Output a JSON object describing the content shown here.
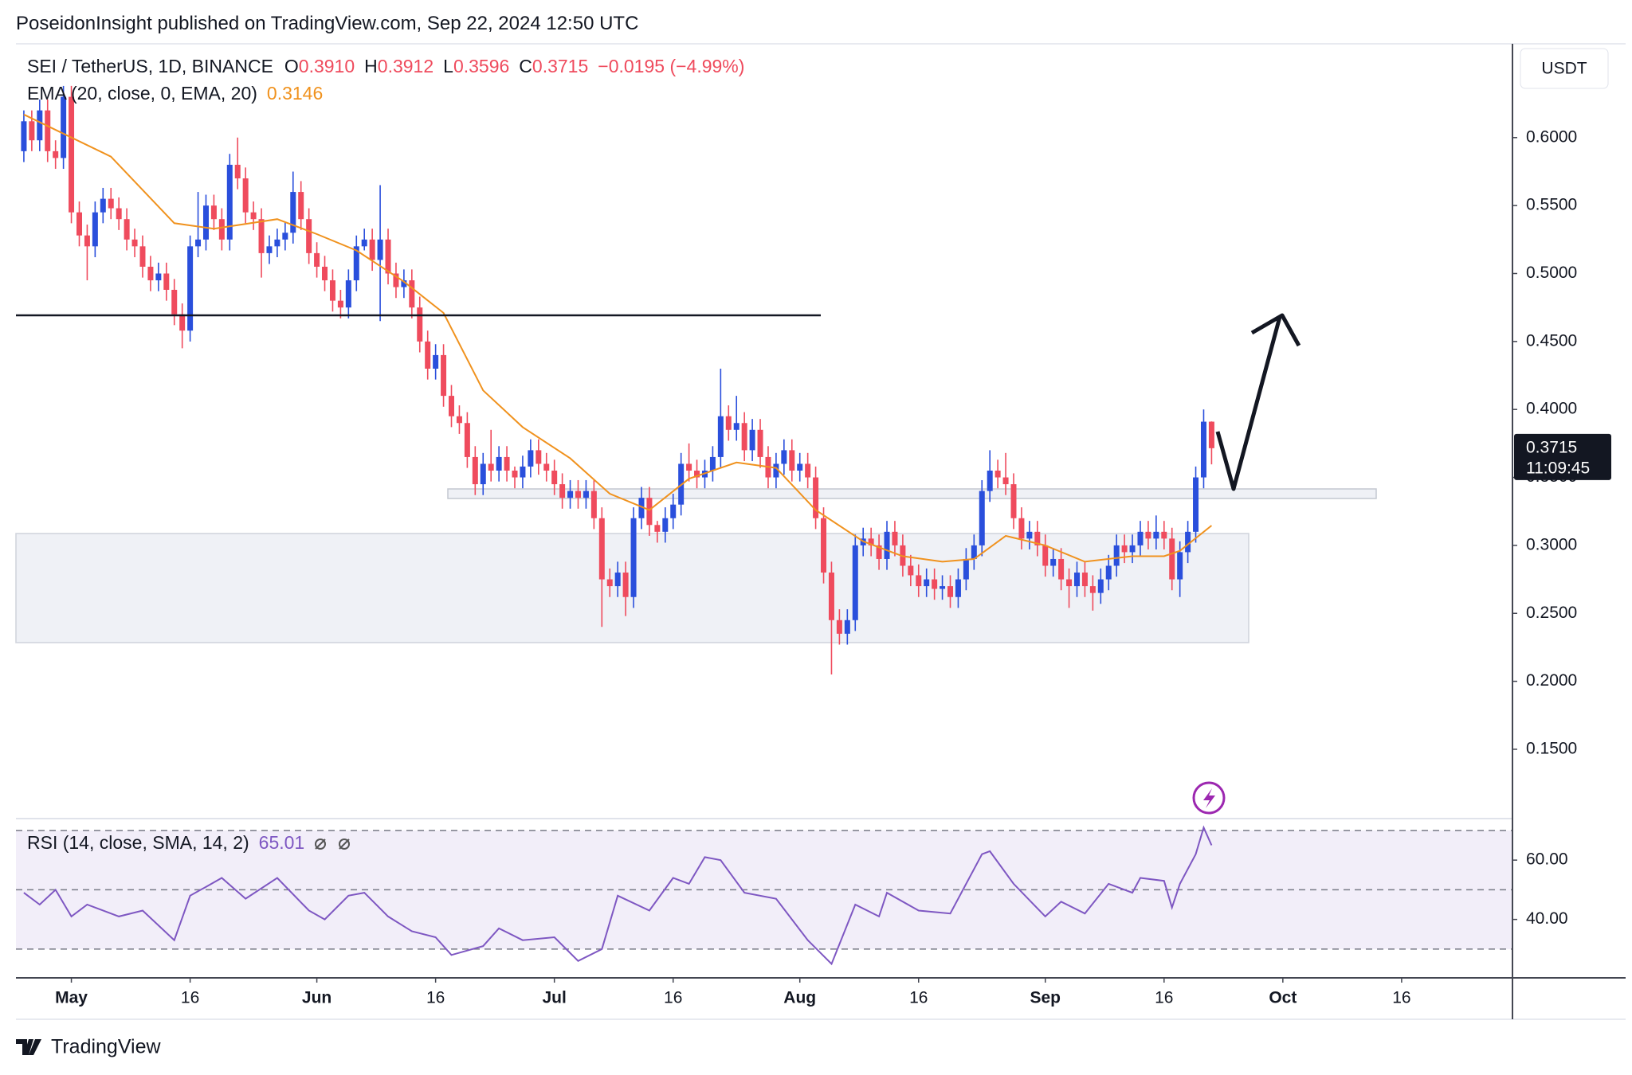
{
  "chart_data": {
    "type": "candlestick",
    "header": "PoseidonInsight published on TradingView.com, Sep 22, 2024 12:50 UTC",
    "symbol": "SEI / TetherUS, 1D, BINANCE",
    "ohlc_legend": [
      {
        "key": "O",
        "label": "0.3910"
      },
      {
        "key": "H",
        "label": "0.3912"
      },
      {
        "key": "L",
        "label": "0.3596"
      },
      {
        "key": "C",
        "label": "0.3715"
      }
    ],
    "change": "−0.0195 (−4.99%)",
    "currency": "USDT",
    "countdown": "11:09:45",
    "branding": "TradingView",
    "up_color": "#2a4fdc",
    "down_color": "#ef4b5d",
    "grid": false,
    "x": [
      "2024-04-25",
      "2024-04-26",
      "2024-04-27",
      "2024-04-28",
      "2024-04-29",
      "2024-04-30",
      "2024-05-01",
      "2024-05-02",
      "2024-05-03",
      "2024-05-04",
      "2024-05-05",
      "2024-05-06",
      "2024-05-07",
      "2024-05-08",
      "2024-05-09",
      "2024-05-10",
      "2024-05-11",
      "2024-05-12",
      "2024-05-13",
      "2024-05-14",
      "2024-05-15",
      "2024-05-16",
      "2024-05-17",
      "2024-05-18",
      "2024-05-19",
      "2024-05-20",
      "2024-05-21",
      "2024-05-22",
      "2024-05-23",
      "2024-05-24",
      "2024-05-25",
      "2024-05-26",
      "2024-05-27",
      "2024-05-28",
      "2024-05-29",
      "2024-05-30",
      "2024-05-31",
      "2024-06-01",
      "2024-06-02",
      "2024-06-03",
      "2024-06-04",
      "2024-06-05",
      "2024-06-06",
      "2024-06-07",
      "2024-06-08",
      "2024-06-09",
      "2024-06-10",
      "2024-06-11",
      "2024-06-12",
      "2024-06-13",
      "2024-06-14",
      "2024-06-15",
      "2024-06-16",
      "2024-06-17",
      "2024-06-18",
      "2024-06-19",
      "2024-06-20",
      "2024-06-21",
      "2024-06-22",
      "2024-06-23",
      "2024-06-24",
      "2024-06-25",
      "2024-06-26",
      "2024-06-27",
      "2024-06-28",
      "2024-06-29",
      "2024-06-30",
      "2024-07-01",
      "2024-07-02",
      "2024-07-03",
      "2024-07-04",
      "2024-07-05",
      "2024-07-06",
      "2024-07-07",
      "2024-07-08",
      "2024-07-09",
      "2024-07-10",
      "2024-07-11",
      "2024-07-12",
      "2024-07-13",
      "2024-07-14",
      "2024-07-15",
      "2024-07-16",
      "2024-07-17",
      "2024-07-18",
      "2024-07-19",
      "2024-07-20",
      "2024-07-21",
      "2024-07-22",
      "2024-07-23",
      "2024-07-24",
      "2024-07-25",
      "2024-07-26",
      "2024-07-27",
      "2024-07-28",
      "2024-07-29",
      "2024-07-30",
      "2024-07-31",
      "2024-08-01",
      "2024-08-02",
      "2024-08-03",
      "2024-08-04",
      "2024-08-05",
      "2024-08-06",
      "2024-08-07",
      "2024-08-08",
      "2024-08-09",
      "2024-08-10",
      "2024-08-11",
      "2024-08-12",
      "2024-08-13",
      "2024-08-14",
      "2024-08-15",
      "2024-08-16",
      "2024-08-17",
      "2024-08-18",
      "2024-08-19",
      "2024-08-20",
      "2024-08-21",
      "2024-08-22",
      "2024-08-23",
      "2024-08-24",
      "2024-08-25",
      "2024-08-26",
      "2024-08-27",
      "2024-08-28",
      "2024-08-29",
      "2024-08-30",
      "2024-08-31",
      "2024-09-01",
      "2024-09-02",
      "2024-09-03",
      "2024-09-04",
      "2024-09-05",
      "2024-09-06",
      "2024-09-07",
      "2024-09-08",
      "2024-09-09",
      "2024-09-10",
      "2024-09-11",
      "2024-09-12",
      "2024-09-13",
      "2024-09-14",
      "2024-09-15",
      "2024-09-16",
      "2024-09-17",
      "2024-09-18",
      "2024-09-19",
      "2024-09-20",
      "2024-09-21",
      "2024-09-22"
    ],
    "open": [
      0.59,
      0.612,
      0.598,
      0.62,
      0.59,
      0.585,
      0.63,
      0.545,
      0.528,
      0.52,
      0.545,
      0.555,
      0.548,
      0.54,
      0.525,
      0.52,
      0.505,
      0.495,
      0.5,
      0.488,
      0.47,
      0.458,
      0.52,
      0.525,
      0.55,
      0.54,
      0.525,
      0.58,
      0.57,
      0.545,
      0.54,
      0.515,
      0.52,
      0.525,
      0.53,
      0.56,
      0.54,
      0.515,
      0.505,
      0.495,
      0.48,
      0.475,
      0.495,
      0.52,
      0.525,
      0.51,
      0.525,
      0.5,
      0.49,
      0.495,
      0.475,
      0.45,
      0.43,
      0.44,
      0.41,
      0.395,
      0.39,
      0.365,
      0.345,
      0.36,
      0.355,
      0.365,
      0.355,
      0.35,
      0.358,
      0.37,
      0.36,
      0.355,
      0.345,
      0.335,
      0.34,
      0.335,
      0.34,
      0.32,
      0.275,
      0.27,
      0.28,
      0.262,
      0.32,
      0.335,
      0.315,
      0.31,
      0.32,
      0.33,
      0.36,
      0.355,
      0.35,
      0.355,
      0.365,
      0.395,
      0.385,
      0.39,
      0.37,
      0.385,
      0.365,
      0.35,
      0.36,
      0.37,
      0.355,
      0.36,
      0.35,
      0.32,
      0.28,
      0.245,
      0.235,
      0.245,
      0.3,
      0.305,
      0.3,
      0.29,
      0.31,
      0.3,
      0.285,
      0.278,
      0.27,
      0.275,
      0.268,
      0.27,
      0.262,
      0.275,
      0.29,
      0.3,
      0.34,
      0.355,
      0.35,
      0.345,
      0.32,
      0.305,
      0.31,
      0.3,
      0.285,
      0.29,
      0.275,
      0.27,
      0.28,
      0.27,
      0.265,
      0.275,
      0.285,
      0.3,
      0.295,
      0.3,
      0.31,
      0.305,
      0.31,
      0.305,
      0.275,
      0.295,
      0.31,
      0.35,
      0.391
    ],
    "high": [
      0.62,
      0.62,
      0.628,
      0.628,
      0.598,
      0.638,
      0.638,
      0.553,
      0.536,
      0.553,
      0.563,
      0.563,
      0.556,
      0.548,
      0.533,
      0.528,
      0.513,
      0.508,
      0.508,
      0.496,
      0.478,
      0.528,
      0.56,
      0.558,
      0.558,
      0.548,
      0.588,
      0.6,
      0.578,
      0.553,
      0.548,
      0.528,
      0.533,
      0.538,
      0.575,
      0.568,
      0.548,
      0.523,
      0.513,
      0.503,
      0.488,
      0.503,
      0.528,
      0.533,
      0.533,
      0.565,
      0.533,
      0.508,
      0.503,
      0.503,
      0.483,
      0.458,
      0.448,
      0.448,
      0.418,
      0.403,
      0.398,
      0.373,
      0.368,
      0.385,
      0.373,
      0.373,
      0.358,
      0.366,
      0.378,
      0.378,
      0.368,
      0.363,
      0.353,
      0.348,
      0.348,
      0.348,
      0.348,
      0.328,
      0.283,
      0.288,
      0.288,
      0.328,
      0.343,
      0.343,
      0.318,
      0.328,
      0.338,
      0.368,
      0.375,
      0.363,
      0.363,
      0.373,
      0.43,
      0.403,
      0.41,
      0.398,
      0.393,
      0.393,
      0.373,
      0.368,
      0.378,
      0.378,
      0.368,
      0.368,
      0.358,
      0.328,
      0.288,
      0.253,
      0.253,
      0.308,
      0.313,
      0.313,
      0.308,
      0.318,
      0.318,
      0.308,
      0.293,
      0.286,
      0.283,
      0.283,
      0.278,
      0.278,
      0.283,
      0.298,
      0.308,
      0.348,
      0.37,
      0.363,
      0.368,
      0.353,
      0.328,
      0.318,
      0.318,
      0.308,
      0.298,
      0.298,
      0.283,
      0.288,
      0.288,
      0.278,
      0.283,
      0.293,
      0.308,
      0.308,
      0.308,
      0.318,
      0.318,
      0.322,
      0.318,
      0.313,
      0.303,
      0.318,
      0.358,
      0.4,
      0.3912
    ],
    "low": [
      0.582,
      0.59,
      0.59,
      0.582,
      0.577,
      0.577,
      0.537,
      0.52,
      0.495,
      0.512,
      0.537,
      0.54,
      0.532,
      0.517,
      0.512,
      0.497,
      0.487,
      0.487,
      0.48,
      0.462,
      0.445,
      0.45,
      0.512,
      0.517,
      0.532,
      0.517,
      0.517,
      0.562,
      0.537,
      0.532,
      0.497,
      0.507,
      0.512,
      0.517,
      0.522,
      0.532,
      0.507,
      0.497,
      0.487,
      0.472,
      0.467,
      0.467,
      0.487,
      0.517,
      0.502,
      0.465,
      0.492,
      0.482,
      0.482,
      0.467,
      0.442,
      0.422,
      0.422,
      0.402,
      0.387,
      0.382,
      0.357,
      0.337,
      0.337,
      0.347,
      0.347,
      0.347,
      0.342,
      0.342,
      0.35,
      0.352,
      0.347,
      0.337,
      0.327,
      0.327,
      0.327,
      0.327,
      0.312,
      0.24,
      0.262,
      0.262,
      0.248,
      0.254,
      0.312,
      0.307,
      0.302,
      0.302,
      0.312,
      0.322,
      0.347,
      0.342,
      0.342,
      0.347,
      0.357,
      0.377,
      0.377,
      0.362,
      0.362,
      0.357,
      0.342,
      0.342,
      0.352,
      0.347,
      0.347,
      0.342,
      0.312,
      0.272,
      0.205,
      0.227,
      0.227,
      0.237,
      0.292,
      0.292,
      0.282,
      0.282,
      0.292,
      0.277,
      0.27,
      0.262,
      0.262,
      0.26,
      0.26,
      0.254,
      0.254,
      0.267,
      0.282,
      0.292,
      0.332,
      0.342,
      0.337,
      0.312,
      0.297,
      0.297,
      0.292,
      0.277,
      0.277,
      0.267,
      0.254,
      0.262,
      0.262,
      0.252,
      0.257,
      0.267,
      0.277,
      0.287,
      0.287,
      0.292,
      0.297,
      0.297,
      0.297,
      0.267,
      0.262,
      0.287,
      0.302,
      0.342,
      0.3596
    ],
    "close": [
      0.612,
      0.598,
      0.62,
      0.59,
      0.585,
      0.63,
      0.545,
      0.528,
      0.52,
      0.545,
      0.555,
      0.548,
      0.54,
      0.525,
      0.52,
      0.505,
      0.495,
      0.5,
      0.488,
      0.47,
      0.458,
      0.52,
      0.525,
      0.55,
      0.54,
      0.525,
      0.58,
      0.57,
      0.545,
      0.54,
      0.515,
      0.52,
      0.525,
      0.53,
      0.56,
      0.54,
      0.515,
      0.505,
      0.495,
      0.48,
      0.475,
      0.495,
      0.52,
      0.525,
      0.51,
      0.525,
      0.5,
      0.49,
      0.495,
      0.475,
      0.45,
      0.43,
      0.44,
      0.41,
      0.395,
      0.39,
      0.365,
      0.345,
      0.36,
      0.355,
      0.365,
      0.355,
      0.35,
      0.358,
      0.37,
      0.36,
      0.355,
      0.345,
      0.335,
      0.34,
      0.335,
      0.34,
      0.32,
      0.275,
      0.27,
      0.28,
      0.262,
      0.32,
      0.335,
      0.315,
      0.31,
      0.32,
      0.33,
      0.36,
      0.355,
      0.35,
      0.355,
      0.365,
      0.395,
      0.385,
      0.39,
      0.37,
      0.385,
      0.365,
      0.35,
      0.36,
      0.37,
      0.355,
      0.36,
      0.35,
      0.32,
      0.28,
      0.245,
      0.235,
      0.245,
      0.3,
      0.305,
      0.3,
      0.29,
      0.31,
      0.3,
      0.285,
      0.278,
      0.27,
      0.275,
      0.268,
      0.27,
      0.262,
      0.275,
      0.29,
      0.3,
      0.34,
      0.355,
      0.35,
      0.345,
      0.32,
      0.305,
      0.31,
      0.3,
      0.285,
      0.29,
      0.275,
      0.27,
      0.28,
      0.27,
      0.265,
      0.275,
      0.285,
      0.3,
      0.295,
      0.3,
      0.31,
      0.305,
      0.31,
      0.305,
      0.275,
      0.295,
      0.31,
      0.35,
      0.391,
      0.3715
    ],
    "xlim": [
      "2024-04-24",
      "2024-10-30"
    ],
    "xticks": [
      {
        "value": "2024-05-01",
        "label": "May"
      },
      {
        "value": "2024-05-16",
        "label": "16"
      },
      {
        "value": "2024-06-01",
        "label": "Jun"
      },
      {
        "value": "2024-06-16",
        "label": "16"
      },
      {
        "value": "2024-07-01",
        "label": "Jul"
      },
      {
        "value": "2024-07-16",
        "label": "16"
      },
      {
        "value": "2024-08-01",
        "label": "Aug"
      },
      {
        "value": "2024-08-16",
        "label": "16"
      },
      {
        "value": "2024-09-01",
        "label": "Sep"
      },
      {
        "value": "2024-09-16",
        "label": "16"
      },
      {
        "value": "2024-10-01",
        "label": "Oct"
      },
      {
        "value": "2024-10-16",
        "label": "16"
      }
    ],
    "ylim": [
      0.099,
      0.669
    ],
    "yticks": [
      {
        "value": 0.15,
        "label": "0.1500"
      },
      {
        "value": 0.2,
        "label": "0.2000"
      },
      {
        "value": 0.25,
        "label": "0.2500"
      },
      {
        "value": 0.3,
        "label": "0.3000"
      },
      {
        "value": 0.35,
        "label": "0.3500"
      },
      {
        "value": 0.4,
        "label": "0.4000"
      },
      {
        "value": 0.45,
        "label": "0.4500"
      },
      {
        "value": 0.5,
        "label": "0.5000"
      },
      {
        "value": 0.55,
        "label": "0.5500"
      },
      {
        "value": 0.6,
        "label": "0.6000"
      }
    ],
    "overlays": [
      {
        "name": "EMA (20, close, 0, EMA, 20)",
        "color": "#f0921e",
        "x": [
          "2024-04-25",
          "2024-05-06",
          "2024-05-14",
          "2024-05-19",
          "2024-05-27",
          "2024-06-01",
          "2024-06-06",
          "2024-06-12",
          "2024-06-17",
          "2024-06-22",
          "2024-06-27",
          "2024-07-03",
          "2024-07-08",
          "2024-07-13",
          "2024-07-18",
          "2024-07-24",
          "2024-07-29",
          "2024-08-03",
          "2024-08-09",
          "2024-08-14",
          "2024-08-19",
          "2024-08-23",
          "2024-08-27",
          "2024-09-01",
          "2024-09-06",
          "2024-09-12",
          "2024-09-16",
          "2024-09-18",
          "2024-09-22"
        ],
        "values": [
          0.617,
          0.586,
          0.537,
          0.533,
          0.54,
          0.529,
          0.517,
          0.494,
          0.471,
          0.414,
          0.387,
          0.364,
          0.338,
          0.326,
          0.349,
          0.361,
          0.357,
          0.326,
          0.303,
          0.292,
          0.288,
          0.29,
          0.307,
          0.3,
          0.288,
          0.292,
          0.292,
          0.296,
          0.3146
        ]
      }
    ],
    "rsi": {
      "name": "RSI (14, close, SMA, 14, 2)",
      "color": "#7e57c2",
      "x": [
        "2024-04-25",
        "2024-04-27",
        "2024-04-29",
        "2024-05-01",
        "2024-05-03",
        "2024-05-07",
        "2024-05-10",
        "2024-05-14",
        "2024-05-16",
        "2024-05-18",
        "2024-05-20",
        "2024-05-23",
        "2024-05-27",
        "2024-05-31",
        "2024-06-02",
        "2024-06-05",
        "2024-06-07",
        "2024-06-10",
        "2024-06-13",
        "2024-06-16",
        "2024-06-18",
        "2024-06-22",
        "2024-06-24",
        "2024-06-27",
        "2024-07-01",
        "2024-07-04",
        "2024-07-07",
        "2024-07-09",
        "2024-07-13",
        "2024-07-16",
        "2024-07-18",
        "2024-07-20",
        "2024-07-22",
        "2024-07-25",
        "2024-07-29",
        "2024-08-02",
        "2024-08-05",
        "2024-08-08",
        "2024-08-11",
        "2024-08-12",
        "2024-08-16",
        "2024-08-20",
        "2024-08-24",
        "2024-08-25",
        "2024-08-28",
        "2024-09-01",
        "2024-09-03",
        "2024-09-06",
        "2024-09-09",
        "2024-09-12",
        "2024-09-13",
        "2024-09-16",
        "2024-09-17",
        "2024-09-18",
        "2024-09-20",
        "2024-09-21",
        "2024-09-22"
      ],
      "values": [
        49,
        45,
        50,
        41,
        45,
        41,
        43,
        33,
        48,
        51,
        54,
        47,
        54,
        43,
        40,
        48,
        49,
        41,
        36,
        34,
        28,
        31,
        37,
        33,
        34,
        26,
        30,
        48,
        43,
        54,
        52,
        61,
        60,
        49,
        47,
        33,
        25,
        45,
        41,
        49,
        43,
        42,
        62,
        63,
        52,
        41,
        46,
        42,
        52,
        49,
        54,
        53,
        44,
        52,
        62,
        71,
        65.01
      ],
      "ylim": [
        20.3,
        74
      ],
      "yticks": [
        {
          "value": 40,
          "label": "40.00"
        },
        {
          "value": 60,
          "label": "60.00"
        }
      ],
      "levels": [
        70,
        50,
        30
      ]
    }
  }
}
